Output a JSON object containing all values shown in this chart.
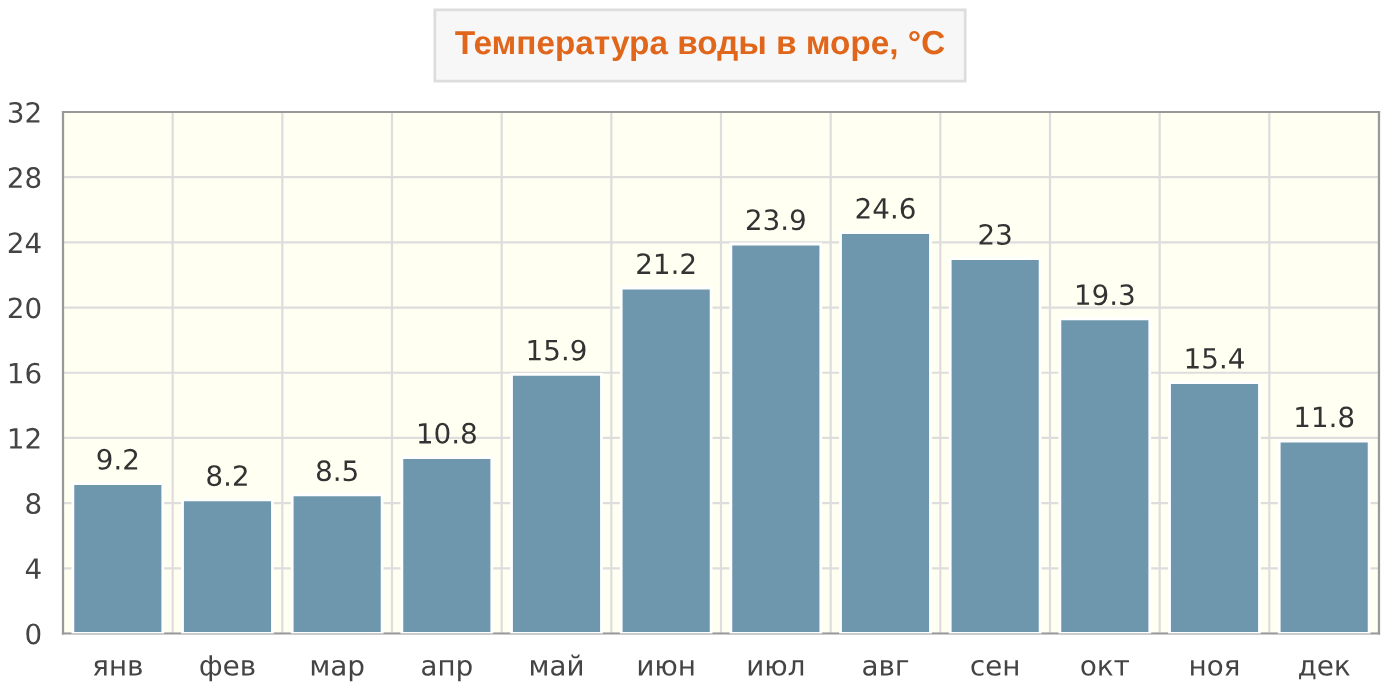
{
  "chart_data": {
    "type": "bar",
    "title": "Температура воды в море, °C",
    "categories": [
      "янв",
      "фев",
      "мар",
      "апр",
      "май",
      "июн",
      "июл",
      "авг",
      "сен",
      "окт",
      "ноя",
      "дек"
    ],
    "values": [
      9.2,
      8.2,
      8.5,
      10.8,
      15.9,
      21.2,
      23.9,
      24.6,
      23,
      19.3,
      15.4,
      11.8
    ],
    "color": "#6e97ad",
    "ylim": [
      0,
      32
    ],
    "yticks": [
      0,
      4,
      8,
      12,
      16,
      20,
      24,
      28,
      32
    ],
    "grid": true,
    "data_labels": true
  }
}
